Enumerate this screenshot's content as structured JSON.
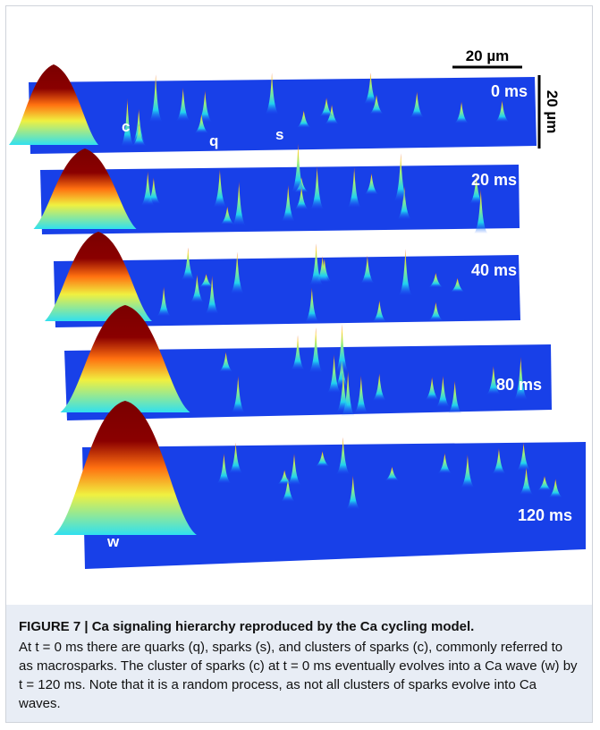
{
  "figure": {
    "scale_bars": {
      "horizontal": "20 µm",
      "vertical": "20 µm"
    },
    "time_labels": [
      "0 ms",
      "20 ms",
      "40 ms",
      "80 ms",
      "120 ms"
    ],
    "annotations": {
      "c": "c",
      "q": "q",
      "s": "s",
      "w": "w"
    }
  },
  "caption": {
    "title": "FIGURE 7 | Ca signaling hierarchy reproduced by the Ca cycling model.",
    "body": "At t = 0 ms there are quarks (q), sparks (s), and clusters of sparks (c), commonly referred to as macrosparks. The cluster of sparks (c) at t = 0 ms eventually evolves into a Ca wave (w) by t = 120 ms. Note that it is a random process, as not all clusters of sparks evolve into Ca waves."
  }
}
